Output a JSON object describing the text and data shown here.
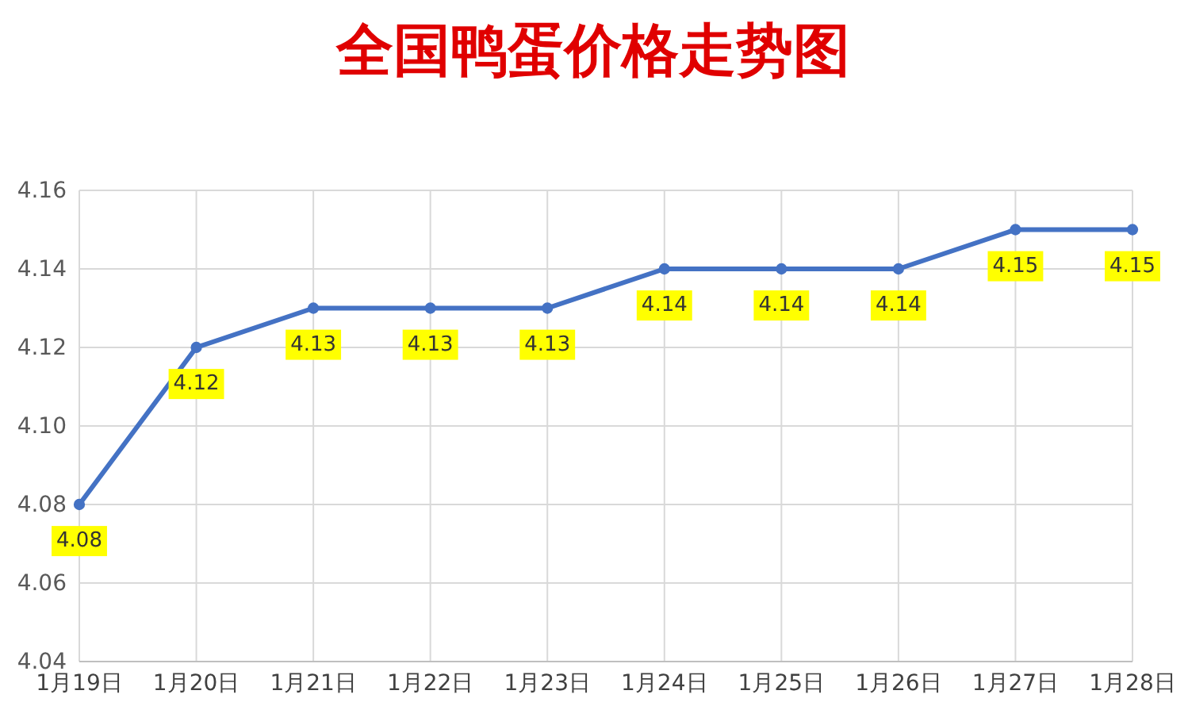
{
  "chart_data": {
    "type": "line",
    "title": "全国鸭蛋价格走势图",
    "categories": [
      "1月19日",
      "1月20日",
      "1月21日",
      "1月22日",
      "1月23日",
      "1月24日",
      "1月25日",
      "1月26日",
      "1月27日",
      "1月28日"
    ],
    "series": [
      {
        "color": "#4472c4",
        "values": [
          4.08,
          4.12,
          4.13,
          4.13,
          4.13,
          4.14,
          4.14,
          4.14,
          4.15,
          4.15
        ]
      }
    ],
    "ylim": [
      4.04,
      4.16
    ],
    "yticks": [
      4.04,
      4.06,
      4.08,
      {
        "value": 4.1,
        "label": "4.10"
      },
      4.12,
      4.14,
      4.16
    ],
    "grid": true,
    "marker": "circle",
    "line_style": "solid",
    "data_labels": true
  }
}
